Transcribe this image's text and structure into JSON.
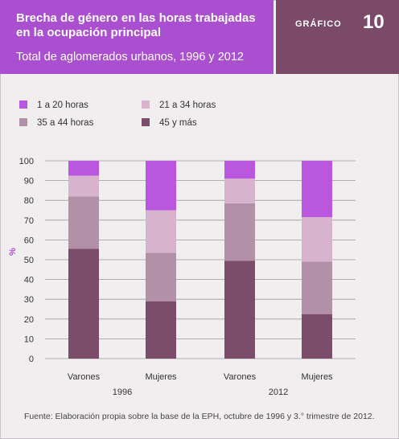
{
  "header": {
    "title": "Brecha de género en las horas trabajadas en la ocupación principal",
    "subtitle": "Total de aglomerados urbanos, 1996 y 2012",
    "grafico_label": "GRÁFICO",
    "grafico_number": "10"
  },
  "legend": [
    {
      "label": "1 a 20 horas",
      "color": "#b957de"
    },
    {
      "label": "21 a 34 horas",
      "color": "#d7b3cd"
    },
    {
      "label": "35 a 44 horas",
      "color": "#b290a7"
    },
    {
      "label": "45 y más",
      "color": "#7b4d6b"
    }
  ],
  "footer": "Fuente: Elaboración propia sobre la base de la EPH, octubre de 1996 y 3.° trimestre de 2012.",
  "chart_data": {
    "type": "bar",
    "stacked": true,
    "ylabel": "%",
    "ylim": [
      0,
      100
    ],
    "yticks": [
      0,
      10,
      20,
      30,
      40,
      50,
      60,
      70,
      80,
      90,
      100
    ],
    "grid": true,
    "categories": [
      "Varones",
      "Mujeres",
      "Varones",
      "Mujeres"
    ],
    "groups": [
      {
        "label": "1996",
        "categories": [
          "Varones",
          "Mujeres"
        ]
      },
      {
        "label": "2012",
        "categories": [
          "Varones",
          "Mujeres"
        ]
      }
    ],
    "series": [
      {
        "name": "45 y más",
        "color": "#7b4d6b",
        "values": [
          55.5,
          29,
          49.5,
          22.5
        ]
      },
      {
        "name": "35 a 44 horas",
        "color": "#b290a7",
        "values": [
          26.5,
          24.5,
          29,
          26.5
        ]
      },
      {
        "name": "21 a 34 horas",
        "color": "#d7b3cd",
        "values": [
          10.5,
          21.5,
          12.5,
          22.5
        ]
      },
      {
        "name": "1 a 20 horas",
        "color": "#b957de",
        "values": [
          7.5,
          25,
          9,
          28.5
        ]
      }
    ]
  }
}
